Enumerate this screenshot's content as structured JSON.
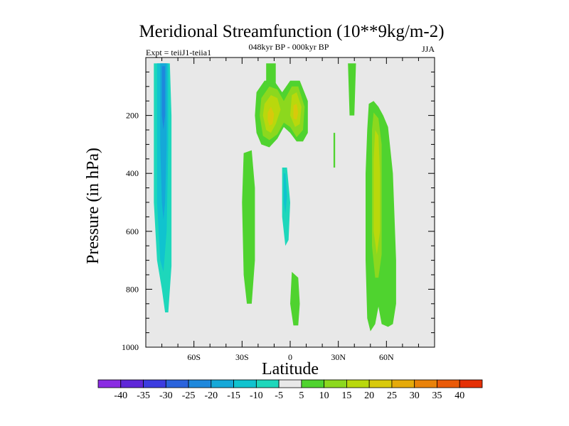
{
  "chart_data": {
    "type": "heatmap",
    "title": "Meridional Streamfunction (10**9kg/m-2)",
    "left_string": "Expt = teiiJ1-teiia1",
    "center_string": "048kyr BP - 000kyr BP",
    "right_string": "JJA",
    "xlabel": "Latitude",
    "ylabel": "Pressure (in hPa)",
    "xlim": [
      -90,
      90
    ],
    "ylim": [
      1000,
      0
    ],
    "x_ticks": [
      {
        "value": -60,
        "label": "60S"
      },
      {
        "value": -30,
        "label": "30S"
      },
      {
        "value": 0,
        "label": "0"
      },
      {
        "value": 30,
        "label": "30N"
      },
      {
        "value": 60,
        "label": "60N"
      }
    ],
    "y_ticks": [
      {
        "value": 200,
        "label": "200"
      },
      {
        "value": 400,
        "label": "400"
      },
      {
        "value": 600,
        "label": "600"
      },
      {
        "value": 800,
        "label": "800"
      },
      {
        "value": 1000,
        "label": "1000"
      }
    ],
    "background_color": "#e8e8e8",
    "colorbar": {
      "labels": [
        "-40",
        "-35",
        "-30",
        "-25",
        "-20",
        "-15",
        "-10",
        "-5",
        "5",
        "10",
        "15",
        "20",
        "25",
        "30",
        "35",
        "40"
      ],
      "colors": [
        "#8a2be2",
        "#5f27d8",
        "#3c3ce0",
        "#2a63dc",
        "#1e88dc",
        "#15a8d8",
        "#10c3cf",
        "#1ed7bb",
        "#e8e8e8",
        "#4fd32f",
        "#8cd81e",
        "#b9d80c",
        "#d8c90b",
        "#e5aa0a",
        "#e9820a",
        "#ea5a08",
        "#e53006"
      ]
    },
    "contour_regions": [
      {
        "name": "sh-polar-outer",
        "level": -5,
        "points": [
          [
            -87,
            20
          ],
          [
            -72,
            20
          ],
          [
            -72,
            200
          ],
          [
            -70,
            420
          ],
          [
            -70,
            780
          ],
          [
            -73,
            900
          ],
          [
            -77,
            935
          ],
          [
            -80,
            905
          ],
          [
            -83,
            820
          ],
          [
            -87,
            700
          ],
          [
            -87,
            500
          ]
        ]
      },
      {
        "name": "sh-polar-cell",
        "level": -10,
        "points": [
          [
            -85,
            20
          ],
          [
            -75,
            20
          ],
          [
            -74,
            200
          ],
          [
            -74,
            400
          ],
          [
            -74,
            720
          ],
          [
            -76,
            880
          ],
          [
            -78,
            880
          ],
          [
            -80,
            800
          ],
          [
            -83,
            700
          ],
          [
            -85,
            500
          ]
        ]
      },
      {
        "name": "sh-polar-cell",
        "level": -15,
        "points": [
          [
            -83,
            20
          ],
          [
            -76,
            20
          ],
          [
            -76,
            300
          ],
          [
            -77,
            600
          ],
          [
            -79,
            740
          ],
          [
            -81,
            700
          ],
          [
            -83,
            500
          ]
        ]
      },
      {
        "name": "sh-polar-cell",
        "level": -20,
        "points": [
          [
            -81,
            20
          ],
          [
            -77,
            20
          ],
          [
            -77,
            300
          ],
          [
            -78,
            500
          ],
          [
            -79,
            560
          ],
          [
            -80,
            500
          ],
          [
            -81,
            300
          ]
        ]
      },
      {
        "name": "sh-polar-core",
        "level": -25,
        "points": [
          [
            -80,
            30
          ],
          [
            -78,
            30
          ],
          [
            -78,
            200
          ],
          [
            -79,
            250
          ],
          [
            -80,
            200
          ]
        ]
      },
      {
        "name": "sh-subpolar-strip",
        "level": -5,
        "points": [
          [
            -70,
            20
          ],
          [
            -67,
            20
          ],
          [
            -67,
            700
          ],
          [
            -67,
            800
          ],
          [
            -68,
            790
          ],
          [
            -70,
            720
          ]
        ]
      },
      {
        "name": "sh-midlat-cell",
        "level": -5,
        "points": [
          [
            -44,
            300
          ],
          [
            -41,
            300
          ],
          [
            -40,
            600
          ],
          [
            -40,
            850
          ],
          [
            -42,
            935
          ],
          [
            -44,
            925
          ],
          [
            -47,
            880
          ],
          [
            -46,
            700
          ],
          [
            -45,
            500
          ]
        ]
      },
      {
        "name": "eq-cell",
        "level": -5,
        "points": [
          [
            -7,
            300
          ],
          [
            -1,
            290
          ],
          [
            1,
            400
          ],
          [
            1,
            600
          ],
          [
            0,
            780
          ],
          [
            -3,
            790
          ],
          [
            -5,
            700
          ],
          [
            -7,
            500
          ]
        ]
      },
      {
        "name": "eq-cell",
        "level": -10,
        "points": [
          [
            -5,
            380
          ],
          [
            -2,
            380
          ],
          [
            0,
            500
          ],
          [
            -1,
            630
          ],
          [
            -3,
            650
          ],
          [
            -5,
            550
          ]
        ]
      },
      {
        "name": "eq-core",
        "level": -15,
        "points": [
          [
            -4,
            400
          ],
          [
            -3,
            400
          ],
          [
            -2,
            480
          ],
          [
            -3,
            540
          ],
          [
            -4,
            500
          ]
        ]
      },
      {
        "name": "nh-subtropic-dot",
        "level": -5,
        "points": [
          [
            7,
            440
          ],
          [
            8,
            440
          ],
          [
            8,
            560
          ],
          [
            7,
            560
          ]
        ]
      },
      {
        "name": "nh-polar-dot",
        "level": -5,
        "points": [
          [
            71,
            700
          ],
          [
            72,
            700
          ],
          [
            72,
            790
          ],
          [
            71,
            790
          ]
        ]
      },
      {
        "name": "sh-subtropic-cell",
        "level": 5,
        "points": [
          [
            -29,
            330
          ],
          [
            -24,
            320
          ],
          [
            -22,
            450
          ],
          [
            -22,
            700
          ],
          [
            -24,
            850
          ],
          [
            -27,
            850
          ],
          [
            -29,
            750
          ],
          [
            -30,
            500
          ]
        ]
      },
      {
        "name": "hadley-upper",
        "level": 5,
        "points": [
          [
            -21,
            120
          ],
          [
            -16,
            80
          ],
          [
            -10,
            80
          ],
          [
            -5,
            120
          ],
          [
            0,
            80
          ],
          [
            6,
            80
          ],
          [
            11,
            150
          ],
          [
            11,
            260
          ],
          [
            8,
            290
          ],
          [
            4,
            290
          ],
          [
            0,
            260
          ],
          [
            -4,
            240
          ],
          [
            -8,
            280
          ],
          [
            -13,
            310
          ],
          [
            -18,
            300
          ],
          [
            -21,
            260
          ],
          [
            -22,
            200
          ]
        ]
      },
      {
        "name": "hadley-upper",
        "level": 10,
        "points": [
          [
            -18,
            140
          ],
          [
            -13,
            100
          ],
          [
            -8,
            110
          ],
          [
            -4,
            150
          ],
          [
            1,
            100
          ],
          [
            5,
            100
          ],
          [
            9,
            170
          ],
          [
            8,
            250
          ],
          [
            4,
            275
          ],
          [
            0,
            240
          ],
          [
            -4,
            225
          ],
          [
            -8,
            265
          ],
          [
            -13,
            285
          ],
          [
            -17,
            270
          ],
          [
            -19,
            200
          ]
        ]
      },
      {
        "name": "hadley-upper",
        "level": 15,
        "points": [
          [
            -16,
            160
          ],
          [
            -12,
            130
          ],
          [
            -8,
            140
          ],
          [
            -6,
            180
          ],
          [
            -9,
            230
          ],
          [
            -12,
            260
          ],
          [
            -15,
            250
          ],
          [
            -17,
            200
          ]
        ]
      },
      {
        "name": "hadley-upper",
        "level": 15,
        "points": [
          [
            1,
            130
          ],
          [
            4,
            120
          ],
          [
            7,
            170
          ],
          [
            6,
            230
          ],
          [
            3,
            240
          ],
          [
            0,
            200
          ]
        ]
      },
      {
        "name": "hadley-core",
        "level": 20,
        "points": [
          [
            -14,
            190
          ],
          [
            -12,
            170
          ],
          [
            -10,
            195
          ],
          [
            -11,
            230
          ],
          [
            -13,
            235
          ],
          [
            -14,
            215
          ]
        ]
      },
      {
        "name": "hadley-core",
        "level": 20,
        "points": [
          [
            2,
            165
          ],
          [
            4,
            160
          ],
          [
            5,
            190
          ],
          [
            4,
            215
          ],
          [
            2,
            210
          ]
        ]
      },
      {
        "name": "eq-up-strip",
        "level": 5,
        "points": [
          [
            -15,
            20
          ],
          [
            -9,
            20
          ],
          [
            -9,
            90
          ],
          [
            -15,
            90
          ]
        ]
      },
      {
        "name": "eq-low-strip",
        "level": 5,
        "points": [
          [
            1,
            740
          ],
          [
            5,
            760
          ],
          [
            6,
            850
          ],
          [
            5,
            925
          ],
          [
            2,
            925
          ],
          [
            0,
            850
          ]
        ]
      },
      {
        "name": "nh-subtropic-strip",
        "level": 5,
        "points": [
          [
            27,
            260
          ],
          [
            28,
            260
          ],
          [
            28,
            380
          ],
          [
            27,
            380
          ]
        ]
      },
      {
        "name": "nh-high-strip",
        "level": 5,
        "points": [
          [
            36,
            20
          ],
          [
            41,
            20
          ],
          [
            40,
            200
          ],
          [
            37,
            200
          ]
        ]
      },
      {
        "name": "nh-polar-cell",
        "level": 5,
        "points": [
          [
            49,
            160
          ],
          [
            52,
            150
          ],
          [
            55,
            170
          ],
          [
            58,
            200
          ],
          [
            61,
            240
          ],
          [
            64,
            400
          ],
          [
            66,
            700
          ],
          [
            66,
            850
          ],
          [
            64,
            920
          ],
          [
            61,
            930
          ],
          [
            57,
            920
          ],
          [
            55,
            860
          ],
          [
            53,
            920
          ],
          [
            50,
            945
          ],
          [
            48,
            900
          ],
          [
            47,
            700
          ],
          [
            47,
            400
          ],
          [
            48,
            250
          ]
        ]
      },
      {
        "name": "nh-polar-cell",
        "level": 10,
        "points": [
          [
            52,
            190
          ],
          [
            55,
            210
          ],
          [
            57,
            300
          ],
          [
            57,
            500
          ],
          [
            57,
            680
          ],
          [
            55,
            760
          ],
          [
            53,
            760
          ],
          [
            51,
            650
          ],
          [
            51,
            400
          ],
          [
            51,
            250
          ]
        ]
      },
      {
        "name": "nh-polar-core",
        "level": 15,
        "points": [
          [
            53,
            250
          ],
          [
            55,
            270
          ],
          [
            56,
            400
          ],
          [
            56,
            600
          ],
          [
            54,
            680
          ],
          [
            52,
            600
          ],
          [
            52,
            350
          ]
        ]
      }
    ]
  }
}
